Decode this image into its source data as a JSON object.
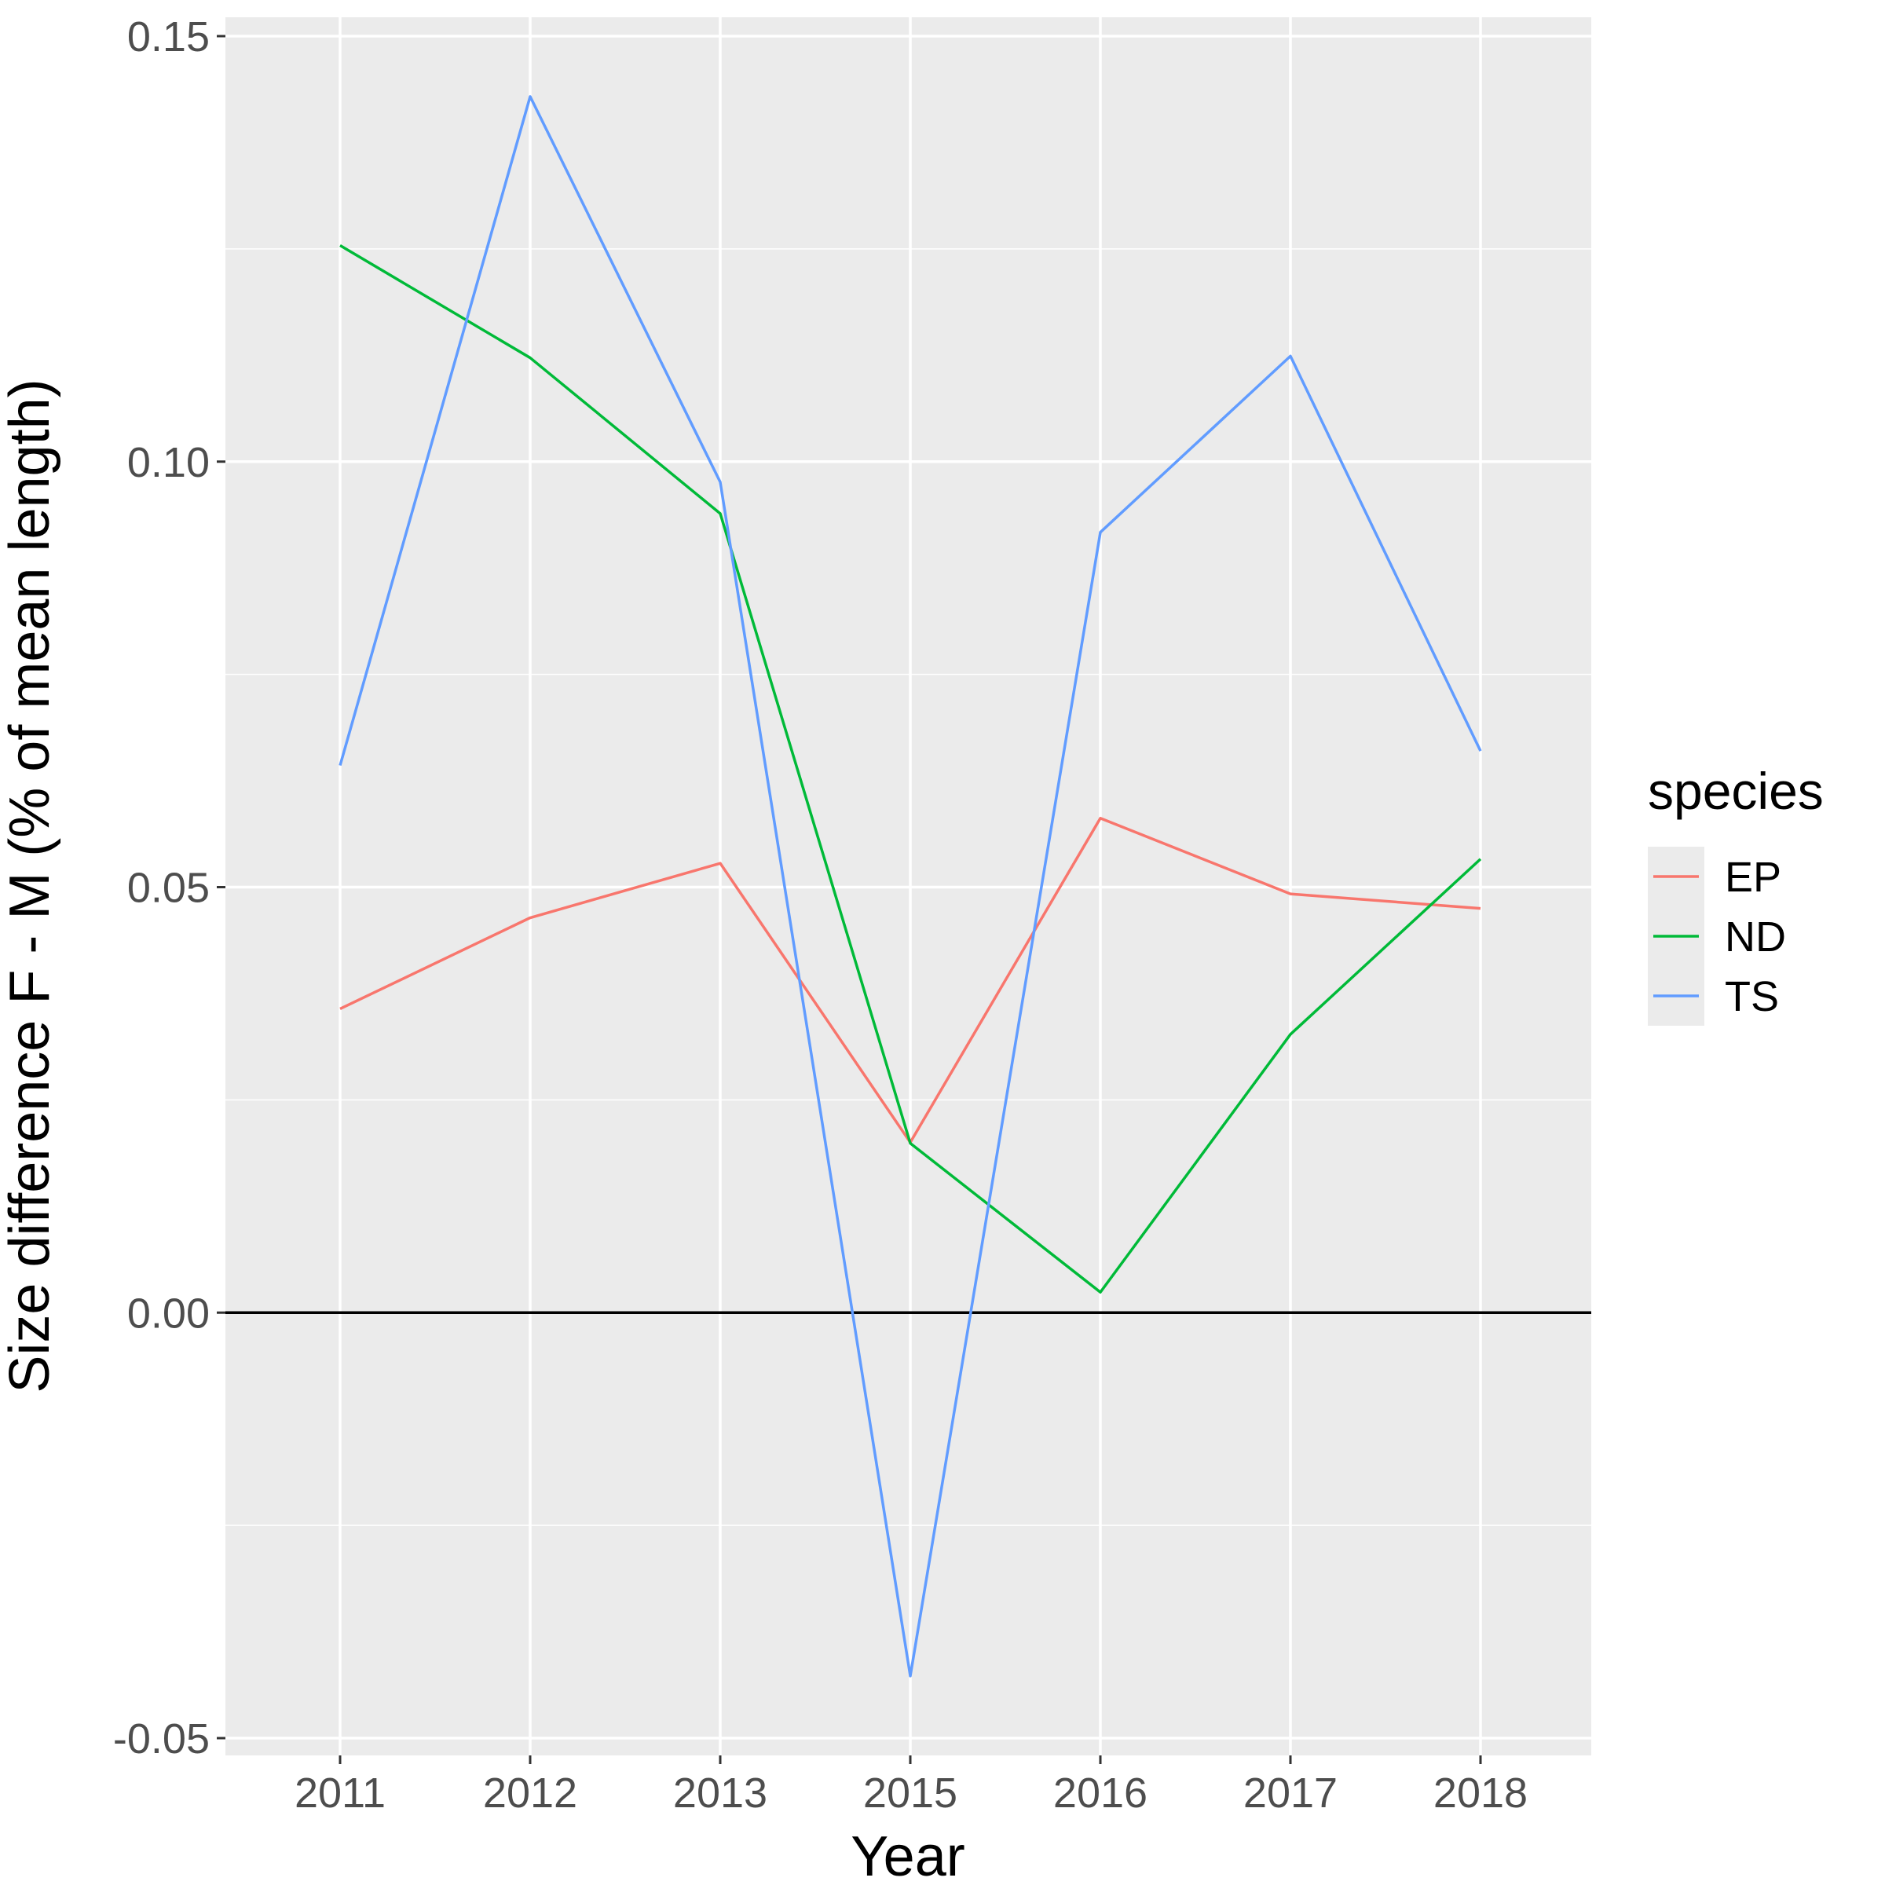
{
  "chart_data": {
    "type": "line",
    "xlabel": "Year",
    "ylabel": "Size difference F - M (% of mean length)",
    "categories": [
      "2011",
      "2012",
      "2013",
      "2015",
      "2016",
      "2017",
      "2018"
    ],
    "ylim": [
      -0.05,
      0.15
    ],
    "yticks": [
      -0.05,
      0.0,
      0.05,
      0.1,
      0.15
    ],
    "ytick_labels": [
      "-0.05",
      "0.00",
      "0.05",
      "0.10",
      "0.15"
    ],
    "reference_line": 0.0,
    "grid": true,
    "legend": {
      "title": "species",
      "placement": "right"
    },
    "series": [
      {
        "name": "EP",
        "color": "#F8766D",
        "values": [
          0.0357,
          0.0464,
          0.0528,
          0.02,
          0.0581,
          0.0492,
          0.0475
        ]
      },
      {
        "name": "ND",
        "color": "#00BA38",
        "values": [
          0.1254,
          0.1122,
          0.0939,
          0.0199,
          0.0024,
          0.0327,
          0.0533
        ]
      },
      {
        "name": "TS",
        "color": "#619CFF",
        "values": [
          0.0643,
          0.1429,
          0.0976,
          -0.0427,
          0.0917,
          0.1124,
          0.066
        ]
      }
    ]
  }
}
